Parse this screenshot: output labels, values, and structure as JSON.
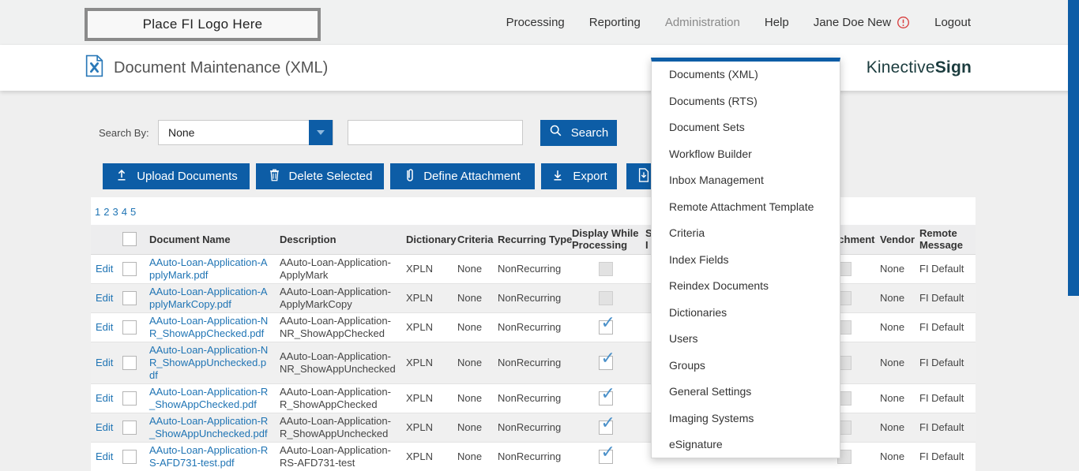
{
  "topbar": {
    "logo_text": "Place FI Logo Here",
    "nav": [
      {
        "label": "Processing",
        "active": false,
        "warning": false
      },
      {
        "label": "Reporting",
        "active": false,
        "warning": false
      },
      {
        "label": "Administration",
        "active": true,
        "warning": false
      },
      {
        "label": "Help",
        "active": false,
        "warning": false
      },
      {
        "label": "Jane Doe New",
        "active": false,
        "warning": true
      },
      {
        "label": "Logout",
        "active": false,
        "warning": false
      }
    ],
    "warning_icon": "alert-circle-icon"
  },
  "header": {
    "title": "Document Maintenance (XML)",
    "title_icon": "document-tools-icon",
    "brand_name": "Kinective ",
    "brand_product": "Sign"
  },
  "admin_menu": {
    "items": [
      "Documents (XML)",
      "Documents (RTS)",
      "Document Sets",
      "Workflow Builder",
      "Inbox Management",
      "Remote Attachment Template",
      "Criteria",
      "Index Fields",
      "Reindex Documents",
      "Dictionaries",
      "Users",
      "Groups",
      "General Settings",
      "Imaging Systems",
      "eSignature"
    ]
  },
  "search": {
    "label": "Search By:",
    "selected": "None",
    "input_value": "",
    "button_label": "Search",
    "button_icon": "search-icon",
    "select_icon": "chevron-down-icon"
  },
  "toolbar": {
    "buttons": [
      {
        "label": "Upload Documents",
        "icon": "upload-icon",
        "key": "upload"
      },
      {
        "label": "Delete Selected",
        "icon": "trash-icon",
        "key": "delete"
      },
      {
        "label": "Define Attachment",
        "icon": "paperclip-icon",
        "key": "define"
      },
      {
        "label": "Export",
        "icon": "download-icon",
        "key": "export"
      },
      {
        "label": "",
        "icon": "document-download-icon",
        "key": "docdown"
      }
    ]
  },
  "pagination": [
    "1",
    "2",
    "3",
    "4",
    "5"
  ],
  "table": {
    "columns": {
      "edit": "",
      "name": "Document Name",
      "desc": "Description",
      "dictionary": "Dictionary",
      "criteria": "Criteria",
      "recurring": "Recurring Type",
      "display": "Display While Processing",
      "s_fragment_line1": "S",
      "s_fragment_line2": "I",
      "attachment": "Attachment",
      "vendor": "Vendor",
      "remote": "Remote Message"
    },
    "rows": [
      {
        "edit": "Edit",
        "name": "AAuto-Loan-Application-ApplyMark.pdf",
        "desc": "AAuto-Loan-Application-ApplyMark",
        "dictionary": "XPLN",
        "criteria": "None",
        "recurring": "NonRecurring",
        "display": "disabled",
        "attachment": "disabled",
        "vendor": "None",
        "remote": "FI Default"
      },
      {
        "edit": "Edit",
        "name": "AAuto-Loan-Application-ApplyMarkCopy.pdf",
        "desc": "AAuto-Loan-Application-ApplyMarkCopy",
        "dictionary": "XPLN",
        "criteria": "None",
        "recurring": "NonRecurring",
        "display": "disabled",
        "attachment": "disabled",
        "vendor": "None",
        "remote": "FI Default"
      },
      {
        "edit": "Edit",
        "name": "AAuto-Loan-Application-NR_ShowAppChecked.pdf",
        "desc": "AAuto-Loan-Application-NR_ShowAppChecked",
        "dictionary": "XPLN",
        "criteria": "None",
        "recurring": "NonRecurring",
        "display": "checked",
        "attachment": "disabled",
        "vendor": "None",
        "remote": "FI Default"
      },
      {
        "edit": "Edit",
        "name": "AAuto-Loan-Application-NR_ShowAppUnchecked.pdf",
        "desc": "AAuto-Loan-Application-NR_ShowAppUnchecked",
        "dictionary": "XPLN",
        "criteria": "None",
        "recurring": "NonRecurring",
        "display": "checked",
        "attachment": "disabled",
        "vendor": "None",
        "remote": "FI Default"
      },
      {
        "edit": "Edit",
        "name": "AAuto-Loan-Application-R_ShowAppChecked.pdf",
        "desc": "AAuto-Loan-Application-R_ShowAppChecked",
        "dictionary": "XPLN",
        "criteria": "None",
        "recurring": "NonRecurring",
        "display": "checked",
        "attachment": "disabled",
        "vendor": "None",
        "remote": "FI Default"
      },
      {
        "edit": "Edit",
        "name": "AAuto-Loan-Application-R_ShowAppUnchecked.pdf",
        "desc": "AAuto-Loan-Application-R_ShowAppUnchecked",
        "dictionary": "XPLN",
        "criteria": "None",
        "recurring": "NonRecurring",
        "display": "checked",
        "attachment": "disabled",
        "vendor": "None",
        "remote": "FI Default"
      },
      {
        "edit": "Edit",
        "name": "AAuto-Loan-Application-RS-AFD731-test.pdf",
        "desc": "AAuto-Loan-Application-RS-AFD731-test",
        "dictionary": "XPLN",
        "criteria": "None",
        "recurring": "NonRecurring",
        "display": "checked",
        "attachment": "disabled",
        "vendor": "None",
        "remote": "FI Default"
      }
    ]
  },
  "colors": {
    "primary_blue": "#0d5da6",
    "link_blue": "#1f74b4",
    "brand_teal": "#1b3c3e",
    "warning_red": "#d84040",
    "check_blue": "#4a90c9",
    "topbar_bg": "#f0f1f1",
    "row_alt_bg": "#f0f0f0"
  }
}
